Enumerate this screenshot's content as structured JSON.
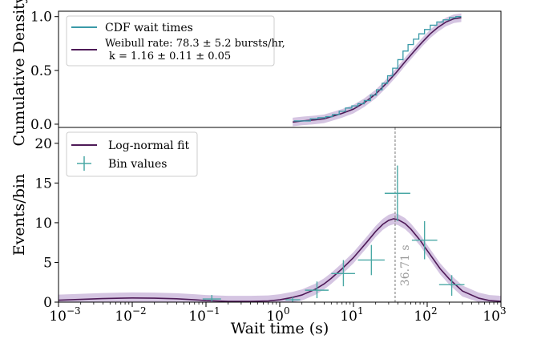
{
  "colors": {
    "cdf_line": "#3a9aa8",
    "fit_line": "#4e1a57",
    "band": "#c7b1d8",
    "bins": "#4aa8a5",
    "vline": "#777777",
    "annotation": "#999999"
  },
  "chart_data": [
    {
      "type": "line",
      "ylabel": "Cumulative Density",
      "xscale": "log",
      "xlim": [
        0.001,
        1000
      ],
      "ylim": [
        -0.03,
        1.05
      ],
      "yticks": [
        0.0,
        0.5,
        1.0
      ],
      "ytick_labels": [
        "0.0",
        "0.5",
        "1.0"
      ],
      "legend_position": "top-left",
      "legend": [
        {
          "label": "CDF wait times",
          "color": "#3a9aa8"
        },
        {
          "label_line1": "Weibull rate: 78.3 ± 5.2 bursts/hr,",
          "label_line2": "k =  1.16 ± 0.11 ± 0.05",
          "color": "#4e1a57"
        }
      ],
      "series": [
        {
          "name": "CDF wait times",
          "x": [
            1.55,
            2.0,
            2.6,
            3.3,
            4.2,
            5.2,
            6.4,
            7.8,
            9.5,
            11.5,
            14,
            17,
            20.5,
            24.5,
            29,
            34,
            40,
            47,
            55,
            65,
            77,
            92,
            110,
            135,
            165,
            200,
            245,
            290
          ],
          "y": [
            0.03,
            0.03,
            0.05,
            0.06,
            0.07,
            0.09,
            0.12,
            0.15,
            0.17,
            0.19,
            0.22,
            0.27,
            0.32,
            0.38,
            0.45,
            0.52,
            0.6,
            0.68,
            0.74,
            0.79,
            0.84,
            0.88,
            0.92,
            0.95,
            0.97,
            0.99,
            1.0,
            1.0
          ]
        },
        {
          "name": "Weibull fit",
          "x": [
            1.5,
            2,
            3,
            4,
            5,
            7,
            10,
            14,
            20,
            28,
            38,
            50,
            65,
            85,
            110,
            140,
            180,
            230,
            290
          ],
          "y": [
            0.02,
            0.03,
            0.04,
            0.05,
            0.07,
            0.1,
            0.14,
            0.2,
            0.28,
            0.38,
            0.48,
            0.58,
            0.67,
            0.76,
            0.84,
            0.9,
            0.95,
            0.98,
            0.99
          ]
        }
      ],
      "band_halfwidth": 0.04
    },
    {
      "type": "scatter",
      "xlabel": "Wait time (s)",
      "ylabel": "Events/bin",
      "xscale": "log",
      "xlim": [
        0.001,
        1000
      ],
      "ylim": [
        0,
        22
      ],
      "yticks": [
        0,
        5,
        10,
        15,
        20
      ],
      "ytick_labels": [
        "0",
        "5",
        "10",
        "15",
        "20"
      ],
      "xticks": [
        0.001,
        0.01,
        0.1,
        1,
        10,
        100,
        1000
      ],
      "xtick_labels": [
        {
          "base": "10",
          "exp": "−3"
        },
        {
          "base": "10",
          "exp": "−2"
        },
        {
          "base": "10",
          "exp": "−1"
        },
        {
          "base": "10",
          "exp": "0"
        },
        {
          "base": "10",
          "exp": "1"
        },
        {
          "base": "10",
          "exp": "2"
        },
        {
          "base": "10",
          "exp": "3"
        }
      ],
      "legend_position": "top-left",
      "legend": [
        {
          "label": "Log-normal fit",
          "color": "#4e1a57"
        },
        {
          "label": "Bin values",
          "color": "#4aa8a5"
        }
      ],
      "fit": {
        "x": [
          0.001,
          0.002,
          0.004,
          0.007,
          0.01,
          0.02,
          0.04,
          0.07,
          0.1,
          0.2,
          0.4,
          0.7,
          1,
          1.5,
          2,
          3,
          4,
          5,
          7,
          10,
          15,
          20,
          25,
          30,
          35,
          40,
          50,
          60,
          80,
          100,
          150,
          200,
          300,
          500,
          700,
          1000
        ],
        "y": [
          0.25,
          0.35,
          0.45,
          0.5,
          0.52,
          0.5,
          0.42,
          0.3,
          0.2,
          0.1,
          0.1,
          0.15,
          0.3,
          0.6,
          0.9,
          1.6,
          2.3,
          3.0,
          4.2,
          5.6,
          7.5,
          8.9,
          9.8,
          10.3,
          10.5,
          10.4,
          9.9,
          9.2,
          7.8,
          6.5,
          4.2,
          2.9,
          1.4,
          0.5,
          0.2,
          0.1
        ]
      },
      "band_halfwidth": 0.7,
      "bins": [
        {
          "x": 0.12,
          "xlo": 0.09,
          "xhi": 0.16,
          "y": 0.4,
          "ylo": 0.1,
          "yhi": 0.9
        },
        {
          "x": 1.5,
          "xlo": 1.2,
          "xhi": 1.9,
          "y": 0.3,
          "ylo": 0.05,
          "yhi": 0.6
        },
        {
          "x": 3.2,
          "xlo": 2.2,
          "xhi": 4.6,
          "y": 1.5,
          "ylo": 0.5,
          "yhi": 2.6
        },
        {
          "x": 7.3,
          "xlo": 5.0,
          "xhi": 10.5,
          "y": 3.6,
          "ylo": 2.0,
          "yhi": 5.3
        },
        {
          "x": 17.5,
          "xlo": 11.5,
          "xhi": 26.5,
          "y": 5.3,
          "ylo": 3.4,
          "yhi": 7.2
        },
        {
          "x": 39.5,
          "xlo": 26.5,
          "xhi": 59,
          "y": 13.7,
          "ylo": 10.2,
          "yhi": 17.2
        },
        {
          "x": 92,
          "xlo": 62,
          "xhi": 137,
          "y": 7.8,
          "ylo": 5.4,
          "yhi": 10.2
        },
        {
          "x": 215,
          "xlo": 145,
          "xhi": 320,
          "y": 2.2,
          "ylo": 0.8,
          "yhi": 3.4
        }
      ],
      "vline_x": 36.71,
      "annotation": "36.71 s"
    }
  ]
}
